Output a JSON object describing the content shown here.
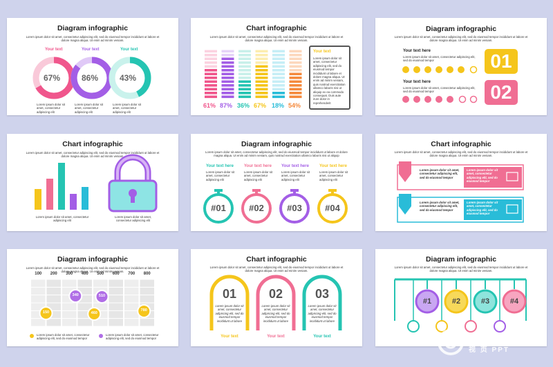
{
  "lorem_long": "Lorem ipsum dolor sit amet, consectetur adipiscing elit, sed do eiusmod tempor incididunt ut labore et dolore magna aliqua. Ut enim ad minim veniam.",
  "lorem_long2": "Lorem ipsum dolor sit amet, consectetur adipiscing elit, sed do eiusmod tempor incididunt ut labore et dolore magna aliqua. Ut enim ad minim veniam, quis nostrud exercitation ullamco laboris nisi ut aliquip",
  "lorem_short": "Lorem ipsum dolor sit amet, consectetur adipiscing elit",
  "lorem_short2": "Lorem ipsum dolor sit amet, consectetur adipiscing elit, sed do eiusmod tempor",
  "slide1": {
    "title": "Diagram infographic",
    "labels": [
      "Your text",
      "Your text",
      "Your text"
    ],
    "values": [
      "67%",
      "86%",
      "43%"
    ]
  },
  "slide2": {
    "title": "Chart infographic",
    "values": [
      "61%",
      "87%",
      "36%",
      "67%",
      "18%",
      "54%"
    ],
    "box_title": "Your text",
    "box_body": "Lorem ipsum dolor sit amet, consectetur adipiscing elit, sed do eiusmod tempor incididunt ut labore et dolore magna aliqua. Ut enim ad minim veniam, quis nostrud exercitation ullamco laboris nisi ut aliquip ex ea commodo consequat. Duis aute irure dolor in reprehenderit"
  },
  "slide3": {
    "title": "Diagram infographic",
    "rows": [
      {
        "label": "Your text here",
        "num": "01"
      },
      {
        "label": "Your text here",
        "num": "02"
      }
    ]
  },
  "slide4": {
    "title": "Chart infographic"
  },
  "slide5": {
    "title": "Diagram infographic",
    "labels": [
      "Your text here",
      "Your text here",
      "Your text here",
      "Your text here"
    ],
    "nums": [
      "#01",
      "#02",
      "#03",
      "#04"
    ]
  },
  "slide6": {
    "title": "Chart infographic",
    "rows": [
      {
        "left": "Lorem ipsum dolor sit amet, consectetur adipiscing elit, sed do eiusmod tempor",
        "right": "Lorem ipsum dolor sit amet, consectetur adipiscing elit, sed do eiusmod tempor"
      },
      {
        "left": "Lorem ipsum dolor sit amet, consectetur adipiscing elit, sed do eiusmod tempor",
        "right": "Lorem ipsum dolor sit amet, consectetur adipiscing elit, sed do eiusmod tempor"
      }
    ]
  },
  "slide7": {
    "title": "Diagram infographic",
    "axis": [
      "100",
      "200",
      "300",
      "400",
      "500",
      "600",
      "700",
      "800"
    ],
    "bubbles": [
      "150",
      "340",
      "460",
      "510",
      "780"
    ]
  },
  "slide8": {
    "title": "Chart infographic",
    "nums": [
      "01",
      "02",
      "03"
    ],
    "body": "Lorem ipsum dolor sit amet, consectetur adipiscing elit, sed do eiusmod tempor incididunt ut labore",
    "caption": "Your text"
  },
  "slide9": {
    "title": "Diagram infographic",
    "nums": [
      "#1",
      "#2",
      "#3",
      "#4"
    ]
  },
  "watermark": {
    "brand": "GFXAA.COM",
    "sub": "视 页 PPT"
  }
}
